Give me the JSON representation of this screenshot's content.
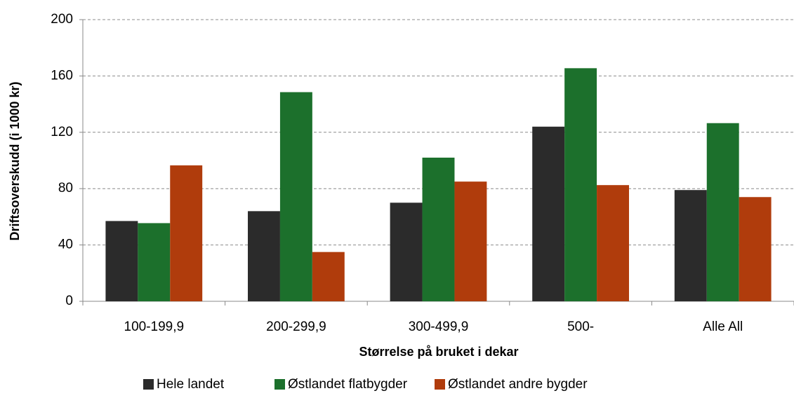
{
  "chart_data": {
    "type": "bar",
    "y_label": "Driftsoverskudd (i 1000 kr)",
    "x_label": "Størrelse på bruket i dekar",
    "categories": [
      "100-199,9",
      "200-299,9",
      "300-499,9",
      "500-",
      "Alle  All"
    ],
    "series": [
      {
        "name": "Hele landet",
        "color": "#2b2b2b",
        "values": [
          57,
          64,
          70,
          124,
          79
        ]
      },
      {
        "name": "Østlandet flatbygder",
        "color": "#1c702c",
        "values": [
          55.5,
          148.5,
          102,
          165.5,
          126.5
        ]
      },
      {
        "name": "Østlandet andre bygder",
        "color": "#b03c0c",
        "values": [
          96.5,
          35,
          85,
          82.5,
          74
        ]
      }
    ],
    "ylim": [
      0,
      200
    ],
    "yticks": [
      0,
      40,
      80,
      120,
      160,
      200
    ],
    "grid": true,
    "legend": "bottom"
  }
}
